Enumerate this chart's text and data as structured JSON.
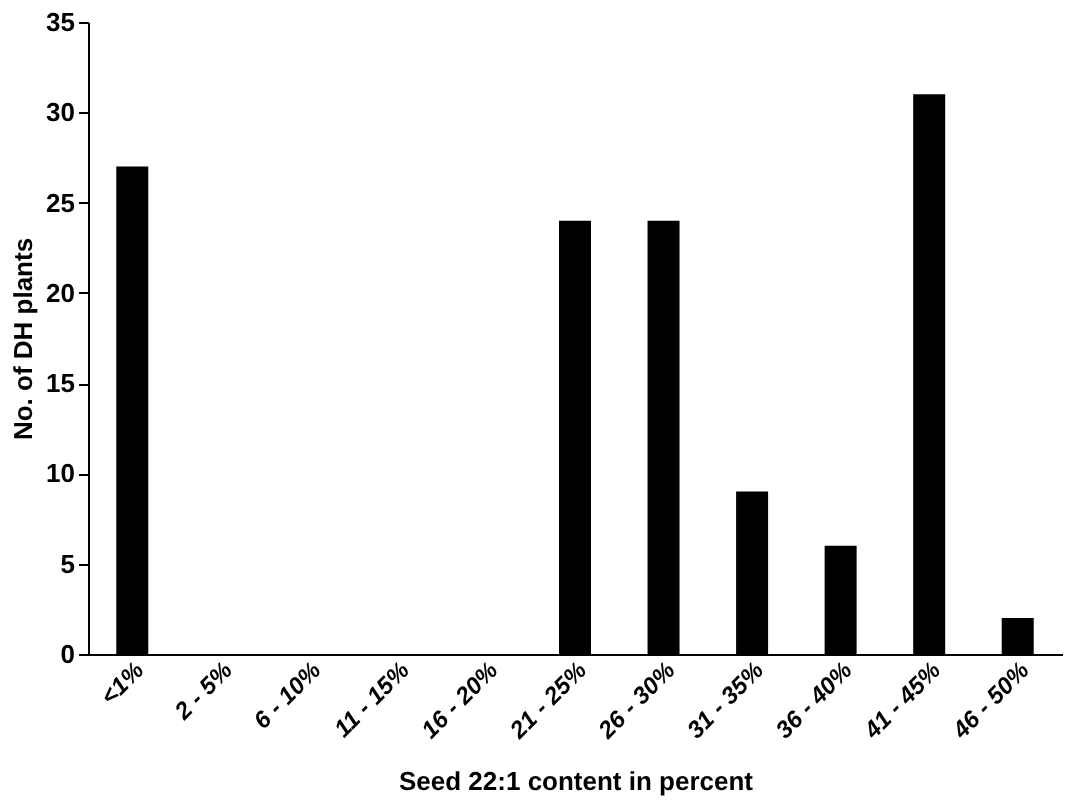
{
  "chart_data": {
    "type": "bar",
    "xlabel": "Seed 22:1 content in percent",
    "ylabel": "No. of DH plants",
    "categories": [
      "<1%",
      "2 - 5%",
      "6 - 10%",
      "11 - 15%",
      "16 - 20%",
      "21 - 25%",
      "26 - 30%",
      "31 - 35%",
      "36 - 40%",
      "41 - 45%",
      "46 - 50%"
    ],
    "values": [
      27,
      0,
      0,
      0,
      0,
      24,
      24,
      9,
      6,
      31,
      2
    ],
    "color": "#000000",
    "ylim": [
      0,
      35
    ],
    "yticks": [
      0,
      5,
      10,
      15,
      20,
      25,
      30,
      35
    ],
    "grid": false
  }
}
